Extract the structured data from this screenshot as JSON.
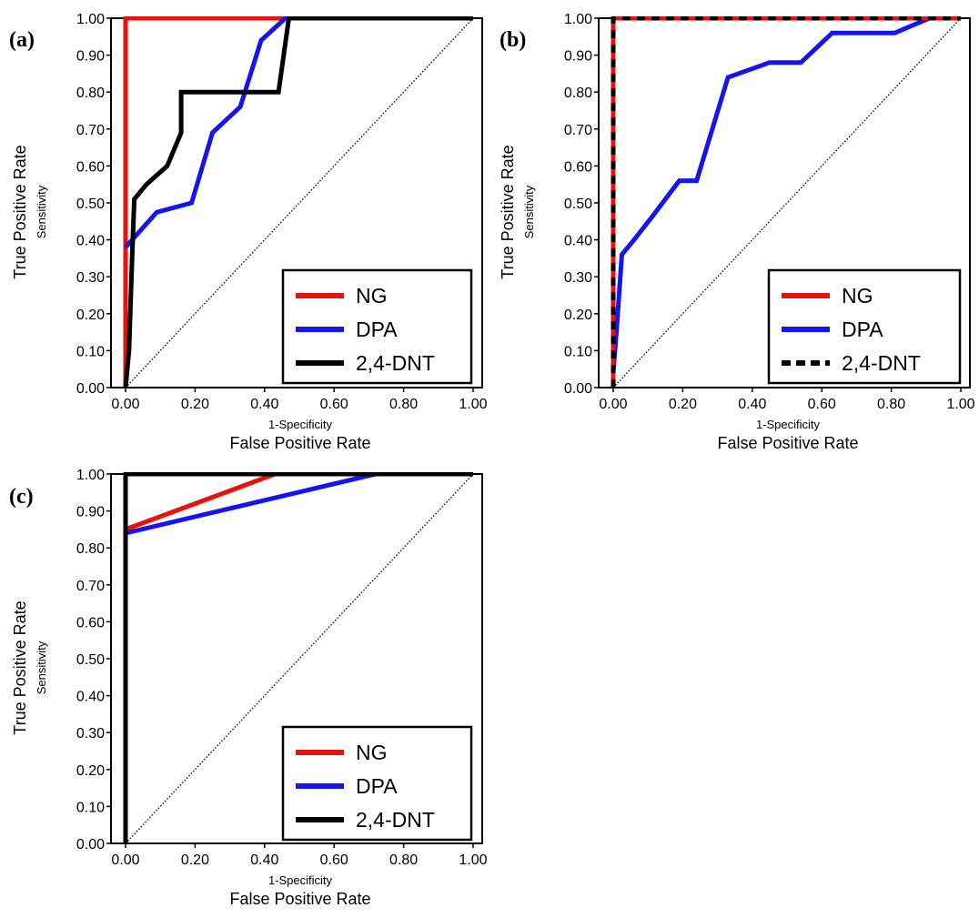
{
  "chart_data": [
    {
      "type": "line",
      "panel_label": "(a)",
      "xlabel": "False Positive Rate",
      "xlabel_sub": "1-Specificity",
      "ylabel": "True Positive Rate",
      "ylabel_sub": "Sensitivity",
      "xlim": [
        0,
        1
      ],
      "ylim": [
        0,
        1
      ],
      "xticks": [
        "0.00",
        "0.20",
        "0.40",
        "0.60",
        "0.80",
        "1.00"
      ],
      "yticks": [
        "0.00",
        "0.10",
        "0.20",
        "0.30",
        "0.40",
        "0.50",
        "0.60",
        "0.70",
        "0.80",
        "0.90",
        "1.00"
      ],
      "grid": false,
      "legend_position": "bottom-right",
      "reference_line": "diagonal-dotted",
      "series": [
        {
          "name": "NG",
          "color": "#e8120c",
          "dash": "solid",
          "points": [
            [
              0,
              0
            ],
            [
              0,
              1
            ],
            [
              1,
              1
            ]
          ]
        },
        {
          "name": "DPA",
          "color": "#1414f0",
          "dash": "solid",
          "points": [
            [
              0,
              0.38
            ],
            [
              0.09,
              0.475
            ],
            [
              0.19,
              0.5
            ],
            [
              0.25,
              0.69
            ],
            [
              0.33,
              0.76
            ],
            [
              0.39,
              0.94
            ],
            [
              0.46,
              1.0
            ],
            [
              1,
              1
            ]
          ]
        },
        {
          "name": "2,4-DNT",
          "color": "#000000",
          "dash": "solid",
          "points": [
            [
              0,
              0
            ],
            [
              0.01,
              0.1
            ],
            [
              0.02,
              0.38
            ],
            [
              0.025,
              0.51
            ],
            [
              0.06,
              0.55
            ],
            [
              0.12,
              0.6
            ],
            [
              0.16,
              0.69
            ],
            [
              0.16,
              0.8
            ],
            [
              0.44,
              0.8
            ],
            [
              0.47,
              1.0
            ],
            [
              1,
              1
            ]
          ]
        }
      ]
    },
    {
      "type": "line",
      "panel_label": "(b)",
      "xlabel": "False Positive Rate",
      "xlabel_sub": "1-Specificity",
      "ylabel": "True Positive Rate",
      "ylabel_sub": "Sensitivity",
      "xlim": [
        0,
        1
      ],
      "ylim": [
        0,
        1
      ],
      "xticks": [
        "0.00",
        "0.20",
        "0.40",
        "0.60",
        "0.80",
        "1.00"
      ],
      "yticks": [
        "0.00",
        "0.10",
        "0.20",
        "0.30",
        "0.40",
        "0.50",
        "0.60",
        "0.70",
        "0.80",
        "0.90",
        "1.00"
      ],
      "grid": false,
      "legend_position": "bottom-right",
      "reference_line": "diagonal-dotted",
      "series": [
        {
          "name": "NG",
          "color": "#e8120c",
          "dash": "solid",
          "points": [
            [
              0,
              0
            ],
            [
              0,
              1
            ],
            [
              1,
              1
            ]
          ]
        },
        {
          "name": "DPA",
          "color": "#1414f0",
          "dash": "solid",
          "points": [
            [
              0,
              0.04
            ],
            [
              0.01,
              0.16
            ],
            [
              0.025,
              0.36
            ],
            [
              0.06,
              0.4
            ],
            [
              0.11,
              0.46
            ],
            [
              0.19,
              0.56
            ],
            [
              0.24,
              0.56
            ],
            [
              0.33,
              0.84
            ],
            [
              0.45,
              0.88
            ],
            [
              0.54,
              0.88
            ],
            [
              0.63,
              0.96
            ],
            [
              0.81,
              0.96
            ],
            [
              0.91,
              1.0
            ],
            [
              1,
              1
            ]
          ]
        },
        {
          "name": "2,4-DNT",
          "color": "#000000",
          "dash": "dashed",
          "points": [
            [
              0,
              0
            ],
            [
              0,
              1
            ],
            [
              1,
              1
            ]
          ]
        }
      ]
    },
    {
      "type": "line",
      "panel_label": "(c)",
      "xlabel": "False Positive Rate",
      "xlabel_sub": "1-Specificity",
      "ylabel": "True Positive Rate",
      "ylabel_sub": "Sensitivity",
      "xlim": [
        0,
        1
      ],
      "ylim": [
        0,
        1
      ],
      "xticks": [
        "0.00",
        "0.20",
        "0.40",
        "0.60",
        "0.80",
        "1.00"
      ],
      "yticks": [
        "0.00",
        "0.10",
        "0.20",
        "0.30",
        "0.40",
        "0.50",
        "0.60",
        "0.70",
        "0.80",
        "0.90",
        "1.00"
      ],
      "grid": false,
      "legend_position": "bottom-right",
      "reference_line": "diagonal-dotted",
      "series": [
        {
          "name": "NG",
          "color": "#e8120c",
          "dash": "solid",
          "points": [
            [
              0,
              0.85
            ],
            [
              0.43,
              1.0
            ],
            [
              1,
              1
            ]
          ]
        },
        {
          "name": "DPA",
          "color": "#1414f0",
          "dash": "solid",
          "points": [
            [
              0,
              0.84
            ],
            [
              0.72,
              1.0
            ],
            [
              1,
              1
            ]
          ]
        },
        {
          "name": "2,4-DNT",
          "color": "#000000",
          "dash": "solid",
          "points": [
            [
              0,
              0
            ],
            [
              0,
              1
            ],
            [
              1,
              1
            ]
          ]
        }
      ]
    }
  ]
}
